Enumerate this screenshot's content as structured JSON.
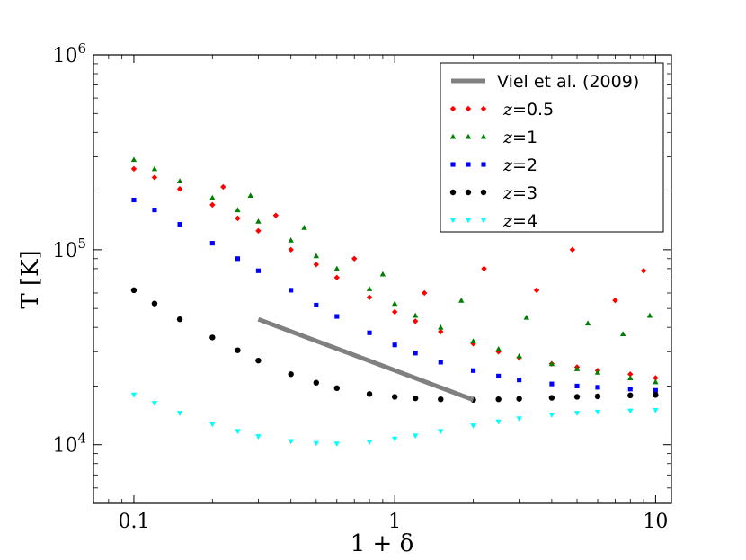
{
  "chart_data": {
    "type": "scatter",
    "title": "",
    "xlabel": "1 + δ",
    "ylabel": "T [K]",
    "xscale": "log",
    "yscale": "log",
    "xlim": [
      0.07,
      11.5
    ],
    "ylim": [
      5000,
      1000000
    ],
    "x_ticks": [
      {
        "value": 0.1,
        "label": "0.1"
      },
      {
        "value": 1,
        "label": "1"
      },
      {
        "value": 10,
        "label": "10"
      }
    ],
    "y_ticks": [
      {
        "value": 10000,
        "base": "10",
        "exp": "4"
      },
      {
        "value": 100000,
        "base": "10",
        "exp": "5"
      },
      {
        "value": 1000000,
        "base": "10",
        "exp": "6"
      }
    ],
    "legend_position": "top-right",
    "series": [
      {
        "name": "Viel et al. (2009)",
        "kind": "line",
        "color": "#808080",
        "x": [
          0.3,
          2.0
        ],
        "y": [
          44000,
          17000
        ]
      },
      {
        "name": "z = 0.5",
        "label_var": "z",
        "label_eq": "=",
        "label_val": "0.5",
        "kind": "scatter",
        "marker": "diamond",
        "color": "#ff0000",
        "x": [
          0.1,
          0.12,
          0.15,
          0.2,
          0.25,
          0.3,
          0.4,
          0.5,
          0.6,
          0.8,
          1.0,
          1.2,
          1.5,
          2.0,
          2.5,
          3.0,
          4.0,
          5.0,
          6.0,
          8.0,
          10.0,
          0.22,
          0.35,
          0.7,
          1.3,
          2.2,
          3.5,
          4.8,
          7.0,
          9.0
        ],
        "y": [
          260000,
          235000,
          205000,
          170000,
          145000,
          125000,
          100000,
          84000,
          72000,
          57000,
          48000,
          43000,
          38000,
          33000,
          30000,
          28000,
          26000,
          25000,
          24000,
          23000,
          22000,
          210000,
          150000,
          90000,
          60000,
          80000,
          62000,
          100000,
          55000,
          78000
        ]
      },
      {
        "name": "z = 1",
        "label_var": "z",
        "label_eq": "=",
        "label_val": "1",
        "kind": "scatter",
        "marker": "triangle",
        "color": "#008000",
        "x": [
          0.1,
          0.12,
          0.15,
          0.2,
          0.25,
          0.3,
          0.4,
          0.5,
          0.6,
          0.8,
          1.0,
          1.2,
          1.5,
          2.0,
          2.5,
          3.0,
          4.0,
          5.0,
          6.0,
          8.0,
          10.0,
          0.28,
          0.45,
          0.9,
          1.8,
          3.2,
          5.5,
          7.5,
          9.5
        ],
        "y": [
          290000,
          260000,
          225000,
          185000,
          160000,
          140000,
          112000,
          93000,
          80000,
          63000,
          53000,
          46000,
          40000,
          34000,
          31000,
          28500,
          26000,
          24500,
          23500,
          22000,
          21000,
          190000,
          130000,
          75000,
          55000,
          45000,
          42000,
          37000,
          46000
        ]
      },
      {
        "name": "z = 2",
        "label_var": "z",
        "label_eq": "=",
        "label_val": "2",
        "kind": "scatter",
        "marker": "square",
        "color": "#0000ff",
        "x": [
          0.1,
          0.12,
          0.15,
          0.2,
          0.25,
          0.3,
          0.4,
          0.5,
          0.6,
          0.8,
          1.0,
          1.2,
          1.5,
          2.0,
          2.5,
          3.0,
          4.0,
          5.0,
          6.0,
          8.0,
          10.0
        ],
        "y": [
          180000,
          160000,
          135000,
          108000,
          90000,
          78000,
          62000,
          52000,
          45500,
          37500,
          32500,
          29500,
          26500,
          24000,
          22500,
          21500,
          20500,
          20000,
          19700,
          19300,
          19000
        ]
      },
      {
        "name": "z = 3",
        "label_var": "z",
        "label_eq": "=",
        "label_val": "3",
        "kind": "scatter",
        "marker": "circle",
        "color": "#000000",
        "x": [
          0.1,
          0.12,
          0.15,
          0.2,
          0.25,
          0.3,
          0.4,
          0.5,
          0.6,
          0.8,
          1.0,
          1.2,
          1.5,
          2.0,
          2.5,
          3.0,
          4.0,
          5.0,
          6.0,
          8.0,
          10.0
        ],
        "y": [
          62000,
          53000,
          44000,
          35500,
          30500,
          27000,
          23000,
          20800,
          19500,
          18200,
          17600,
          17300,
          17100,
          17000,
          17100,
          17200,
          17400,
          17600,
          17700,
          17900,
          18000
        ]
      },
      {
        "name": "z = 4",
        "label_var": "z",
        "label_eq": "=",
        "label_val": "4",
        "kind": "scatter",
        "marker": "triangle-down",
        "color": "#00ffff",
        "x": [
          0.1,
          0.12,
          0.15,
          0.2,
          0.25,
          0.3,
          0.4,
          0.5,
          0.6,
          0.8,
          1.0,
          1.2,
          1.5,
          2.0,
          2.5,
          3.0,
          4.0,
          5.0,
          6.0,
          8.0,
          10.0
        ],
        "y": [
          18000,
          16300,
          14500,
          12700,
          11700,
          11000,
          10400,
          10150,
          10100,
          10300,
          10700,
          11100,
          11700,
          12500,
          13100,
          13600,
          14200,
          14500,
          14700,
          14900,
          15000
        ]
      }
    ]
  }
}
